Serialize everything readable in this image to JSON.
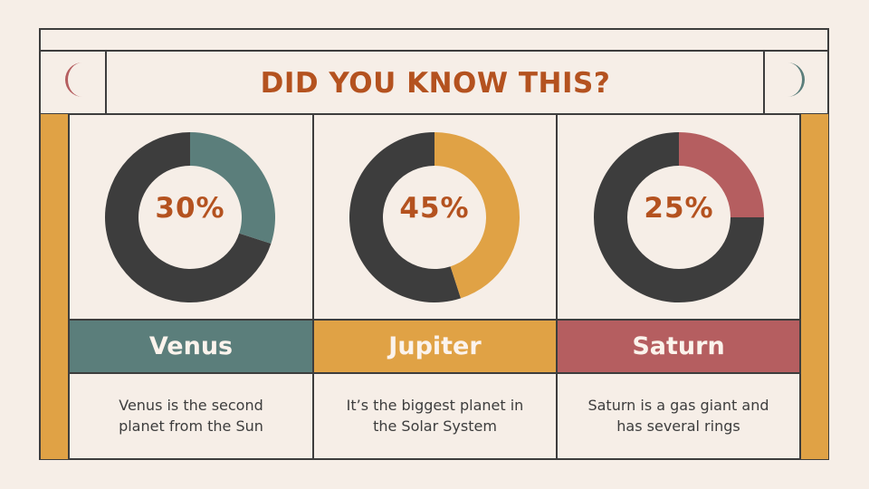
{
  "title": "DID YOU KNOW THIS?",
  "colors": {
    "background": "#f6eee7",
    "dark": "#3d3d3d",
    "title": "#b4521f",
    "teal": "#5b7e7b",
    "mustard": "#e0a245",
    "rose": "#b55e60"
  },
  "icons": {
    "left": "crescent-moon-icon",
    "right": "crescent-moon-icon"
  },
  "chart_data": [
    {
      "type": "pie",
      "title": "Venus",
      "values": [
        30,
        70
      ],
      "label": "30%",
      "color": "#5b7e7b"
    },
    {
      "type": "pie",
      "title": "Jupiter",
      "values": [
        45,
        55
      ],
      "label": "45%",
      "color": "#e0a245"
    },
    {
      "type": "pie",
      "title": "Saturn",
      "values": [
        25,
        75
      ],
      "label": "25%",
      "color": "#b55e60"
    }
  ],
  "cards": [
    {
      "name": "Venus",
      "percent": "30%",
      "desc1": "Venus is the second",
      "desc2": "planet from the Sun"
    },
    {
      "name": "Jupiter",
      "percent": "45%",
      "desc1": "It’s the biggest planet in",
      "desc2": "the Solar System"
    },
    {
      "name": "Saturn",
      "percent": "25%",
      "desc1": "Saturn is a gas giant and",
      "desc2": "has several rings"
    }
  ]
}
